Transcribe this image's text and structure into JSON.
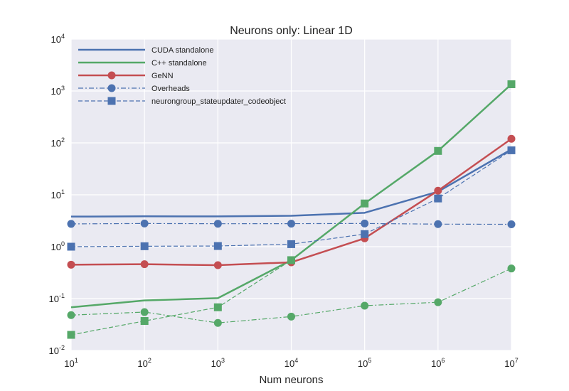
{
  "chart_data": {
    "type": "line",
    "title": "Neurons only: Linear 1D",
    "xlabel": "Num neurons",
    "ylabel": "",
    "xscale": "log",
    "yscale": "log",
    "xlim": [
      10,
      10000000
    ],
    "ylim": [
      0.01,
      10000
    ],
    "x": [
      10,
      100,
      1000,
      10000,
      100000,
      1000000,
      10000000
    ],
    "xticks": [
      {
        "base": "10",
        "exp": "1"
      },
      {
        "base": "10",
        "exp": "2"
      },
      {
        "base": "10",
        "exp": "3"
      },
      {
        "base": "10",
        "exp": "4"
      },
      {
        "base": "10",
        "exp": "5"
      },
      {
        "base": "10",
        "exp": "6"
      },
      {
        "base": "10",
        "exp": "7"
      }
    ],
    "yticks": [
      {
        "base": "10",
        "exp": "-2"
      },
      {
        "base": "10",
        "exp": "-1"
      },
      {
        "base": "10",
        "exp": "0"
      },
      {
        "base": "10",
        "exp": "1"
      },
      {
        "base": "10",
        "exp": "2"
      },
      {
        "base": "10",
        "exp": "3"
      },
      {
        "base": "10",
        "exp": "4"
      }
    ],
    "grid": true,
    "legend_position": "top-left",
    "colors": {
      "cuda": "#4c72b0",
      "cpp": "#55a868",
      "genn": "#c44e52",
      "background": "#eaeaf2",
      "grid": "#ffffff"
    },
    "series": [
      {
        "name": "CUDA standalone",
        "color": "#4c72b0",
        "style": "solid",
        "marker": "none",
        "in_legend": true,
        "values": [
          3.8,
          3.85,
          3.83,
          3.95,
          4.5,
          11.5,
          75
        ]
      },
      {
        "name": "C++ standalone",
        "color": "#55a868",
        "style": "solid",
        "marker": "none",
        "in_legend": true,
        "values": [
          0.068,
          0.092,
          0.102,
          0.55,
          6.8,
          70,
          1350
        ]
      },
      {
        "name": "GeNN",
        "color": "#c44e52",
        "style": "solid",
        "marker": "circle",
        "in_legend": true,
        "values": [
          0.45,
          0.46,
          0.44,
          0.5,
          1.45,
          12,
          120
        ]
      },
      {
        "name": "Overheads",
        "color": "#4c72b0",
        "style": "dashdot",
        "marker": "circle",
        "in_legend": true,
        "values": [
          2.75,
          2.8,
          2.77,
          2.78,
          2.8,
          2.72,
          2.7
        ]
      },
      {
        "name": "neurongroup_stateupdater_codeobject",
        "color": "#4c72b0",
        "style": "dashed",
        "marker": "square",
        "in_legend": true,
        "values": [
          1.0,
          1.02,
          1.03,
          1.12,
          1.75,
          8.5,
          72
        ]
      },
      {
        "name": "",
        "color": "#55a868",
        "style": "dashdot",
        "marker": "circle",
        "in_legend": false,
        "values": [
          0.048,
          0.055,
          0.034,
          0.045,
          0.073,
          0.085,
          0.38
        ]
      },
      {
        "name": "",
        "color": "#55a868",
        "style": "dashed",
        "marker": "square",
        "in_legend": false,
        "values": [
          0.02,
          0.037,
          0.068,
          0.55,
          6.8,
          70,
          1350
        ]
      }
    ]
  }
}
